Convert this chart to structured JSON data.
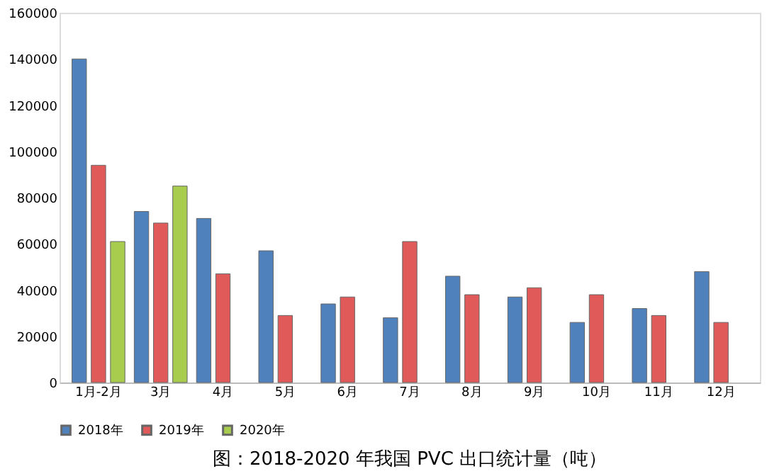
{
  "chart_data": {
    "type": "bar",
    "title": "图：2018-2020 年我国 PVC 出口统计量（吨）",
    "categories": [
      "1月-2月",
      "3月",
      "4月",
      "5月",
      "6月",
      "7月",
      "8月",
      "9月",
      "10月",
      "11月",
      "12月"
    ],
    "series": [
      {
        "name": "2018年",
        "color": "#4f81bd",
        "values": [
          140000,
          74000,
          71000,
          57000,
          34000,
          28000,
          46000,
          37000,
          26000,
          32000,
          48000
        ]
      },
      {
        "name": "2019年",
        "color": "#e05a5a",
        "values": [
          94000,
          69000,
          47000,
          29000,
          37000,
          61000,
          38000,
          41000,
          38000,
          29000,
          26000
        ]
      },
      {
        "name": "2020年",
        "color": "#a8cc4e",
        "values": [
          61000,
          85000,
          null,
          null,
          null,
          null,
          null,
          null,
          null,
          null,
          null
        ]
      }
    ],
    "ylim": [
      0,
      160000
    ],
    "yticks": [
      0,
      20000,
      40000,
      60000,
      80000,
      100000,
      120000,
      140000,
      160000
    ],
    "grid": false,
    "legend": "bottom"
  }
}
